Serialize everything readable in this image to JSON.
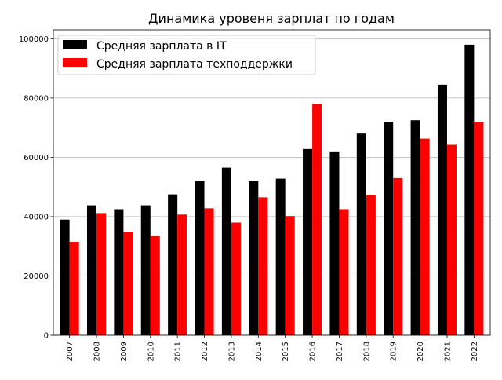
{
  "chart_data": {
    "type": "bar",
    "title": "Динамика уровеня зарплат по годам",
    "xlabel": "",
    "ylabel": "",
    "categories": [
      "2007",
      "2008",
      "2009",
      "2010",
      "2011",
      "2012",
      "2013",
      "2014",
      "2015",
      "2016",
      "2017",
      "2018",
      "2019",
      "2020",
      "2021",
      "2022"
    ],
    "series": [
      {
        "name": "Средняя зарплата в IT",
        "color": "#000000",
        "values": [
          39000,
          43800,
          42500,
          43800,
          47500,
          52000,
          56500,
          52000,
          52800,
          62800,
          62000,
          68000,
          72000,
          72500,
          84500,
          98000
        ]
      },
      {
        "name": "Средняя зарплата техподдержки",
        "color": "#ff0000",
        "values": [
          31500,
          41200,
          34800,
          33500,
          40700,
          42800,
          38000,
          46500,
          40200,
          78000,
          42500,
          47300,
          53000,
          66300,
          64200,
          72000
        ]
      }
    ],
    "ylim": [
      0,
      103000
    ],
    "yticks": [
      "0",
      "20000",
      "40000",
      "60000",
      "80000",
      "100000"
    ],
    "ytick_values": [
      0,
      20000,
      40000,
      60000,
      80000,
      100000
    ],
    "grid": "y-axis",
    "legend_position": "top-left"
  }
}
